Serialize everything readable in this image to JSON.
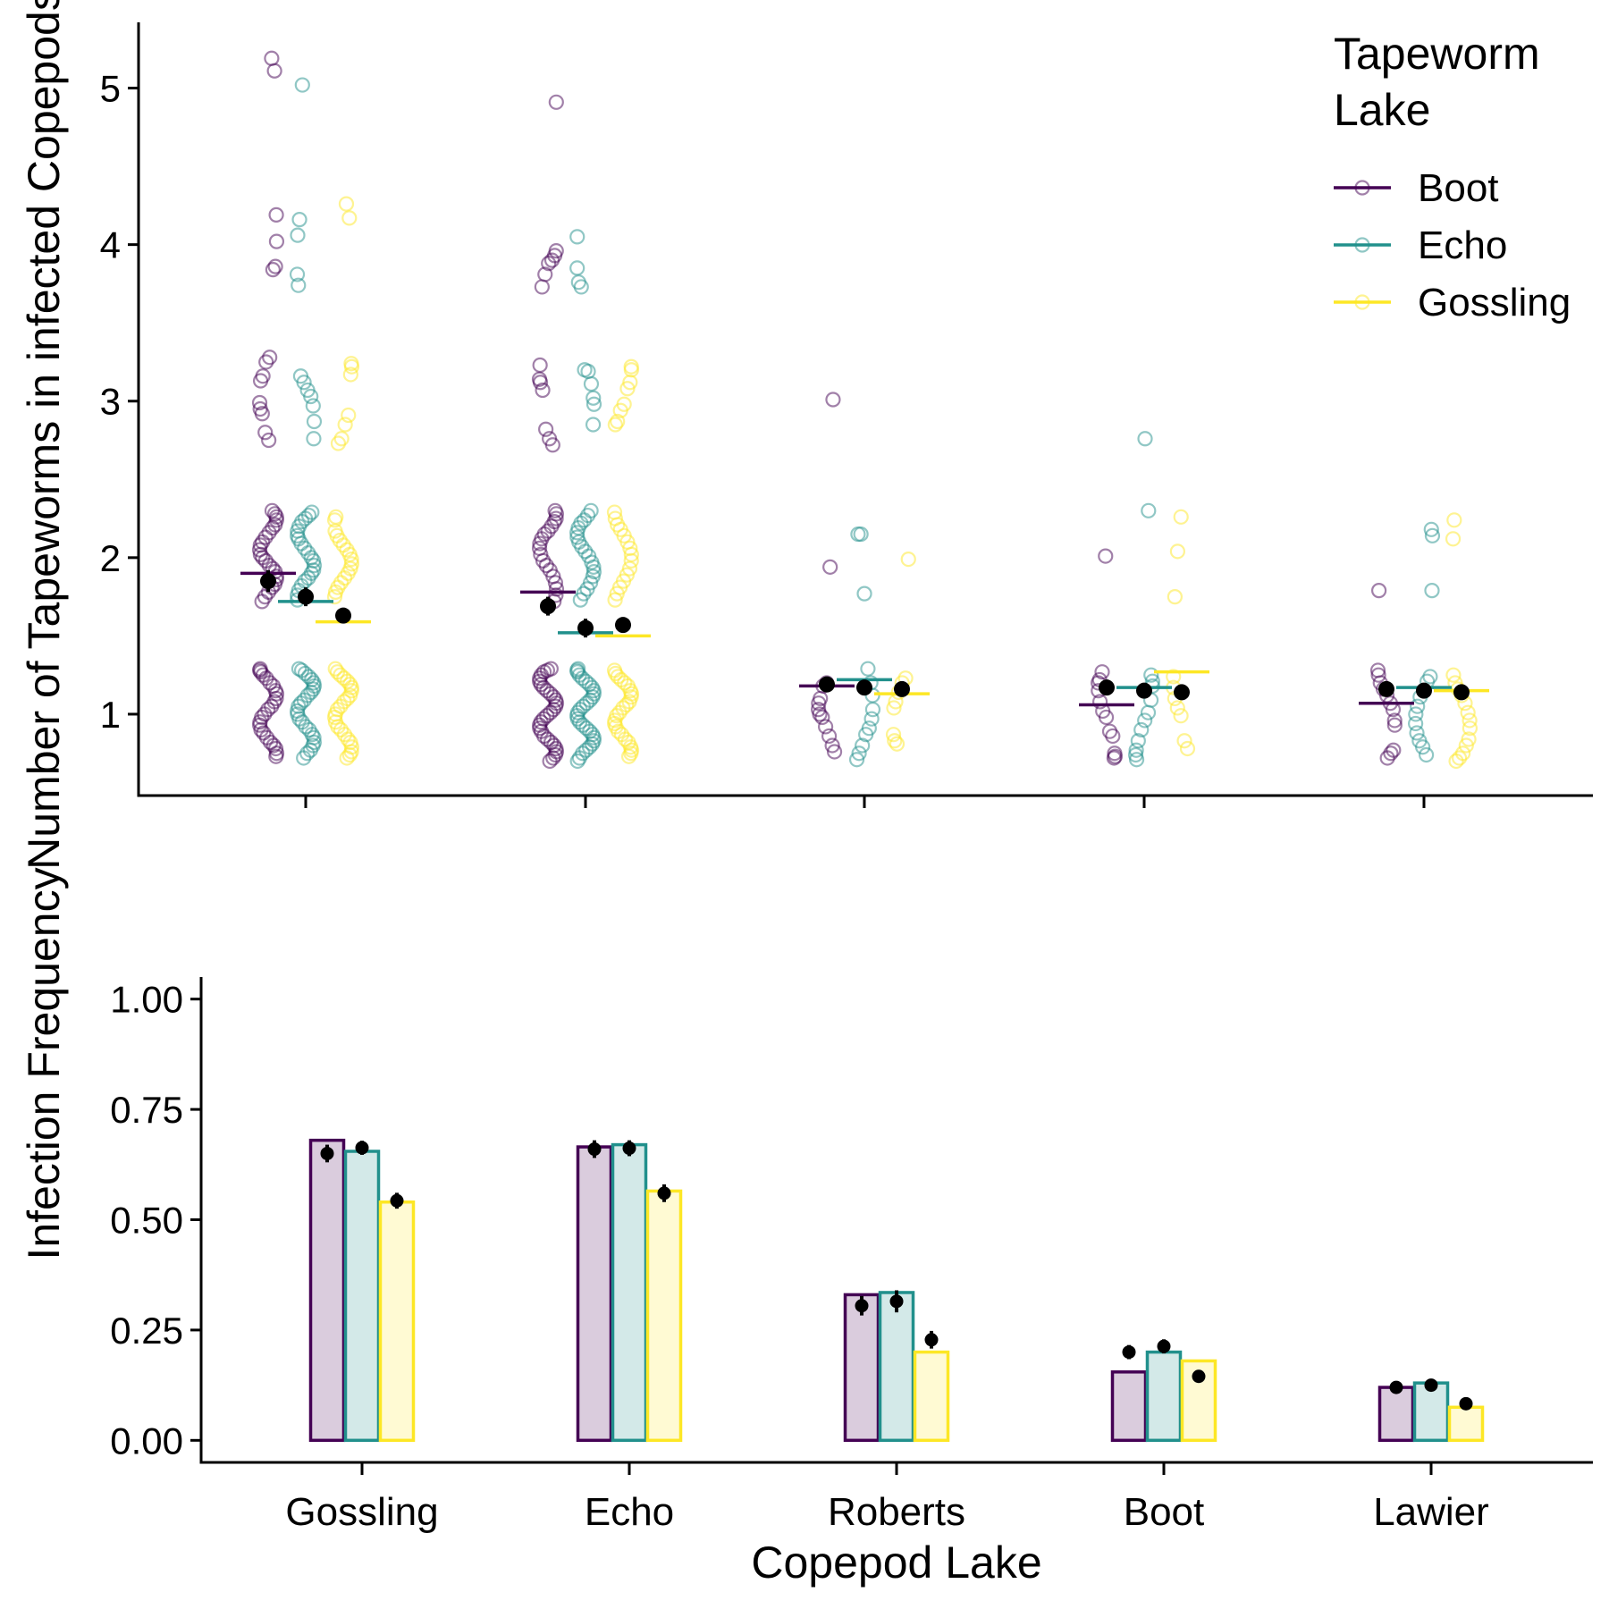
{
  "legend": {
    "title_line1": "Tapeworm",
    "title_line2": "Lake",
    "items": [
      "Boot",
      "Echo",
      "Gossling"
    ]
  },
  "colors": {
    "Boot": "#440154",
    "Echo": "#21908C",
    "Gossling": "#FDE725",
    "summary": "#000000",
    "axis": "#000000"
  },
  "chart_data": [
    {
      "type": "scatter",
      "panel": "top",
      "ylabel": "Number of Tapeworms in infected Copepods",
      "xlabel": "",
      "ylim": [
        0.48,
        5.42
      ],
      "yticks": [
        1,
        2,
        3,
        4,
        5
      ],
      "categories": [
        "Gossling",
        "Echo",
        "Roberts",
        "Boot",
        "Lawier"
      ],
      "series_order": [
        "Boot",
        "Echo",
        "Gossling"
      ],
      "observed_mean": {
        "Boot": [
          1.9,
          1.78,
          1.18,
          1.06,
          1.07
        ],
        "Echo": [
          1.72,
          1.52,
          1.22,
          1.17,
          1.17
        ],
        "Gossling": [
          1.59,
          1.5,
          1.13,
          1.27,
          1.15
        ]
      },
      "model_estimate": {
        "Boot": {
          "mean": [
            1.85,
            1.69,
            1.19,
            1.17,
            1.16
          ],
          "se": [
            0.07,
            0.06,
            0.03,
            0.03,
            0.03
          ]
        },
        "Echo": {
          "mean": [
            1.75,
            1.55,
            1.17,
            1.15,
            1.15
          ],
          "se": [
            0.06,
            0.06,
            0.03,
            0.03,
            0.03
          ]
        },
        "Gossling": {
          "mean": [
            1.63,
            1.57,
            1.16,
            1.14,
            1.14
          ],
          "se": [
            0.04,
            0.04,
            0.03,
            0.03,
            0.03
          ]
        }
      },
      "points": {
        "Boot": [
          [
            5.19,
            5.11,
            4.19,
            4.02,
            3.86,
            3.84,
            3.28,
            3.25,
            3.16,
            3.13,
            2.99,
            2.95,
            2.92,
            2.8,
            2.75,
            2.3,
            2.28,
            2.26,
            2.24,
            2.21,
            2.19,
            2.16,
            2.13,
            2.1,
            2.08,
            2.05,
            2.02,
            2.0,
            1.98,
            1.95,
            1.93,
            1.91,
            1.88,
            1.86,
            1.83,
            1.81,
            1.78,
            1.75,
            1.72,
            1.29,
            1.28,
            1.27,
            1.25,
            1.23,
            1.2,
            1.18,
            1.15,
            1.13,
            1.1,
            1.08,
            1.05,
            1.03,
            1.0,
            0.98,
            0.95,
            0.93,
            0.9,
            0.88,
            0.85,
            0.82,
            0.8,
            0.78,
            0.75,
            0.73
          ],
          [
            4.91,
            3.96,
            3.93,
            3.9,
            3.88,
            3.81,
            3.73,
            3.23,
            3.14,
            3.12,
            3.07,
            2.82,
            2.76,
            2.72,
            2.3,
            2.28,
            2.25,
            2.23,
            2.2,
            2.17,
            2.15,
            2.12,
            2.09,
            2.06,
            2.02,
            1.98,
            1.95,
            1.92,
            1.88,
            1.84,
            1.8,
            1.76,
            1.72,
            1.29,
            1.28,
            1.27,
            1.25,
            1.23,
            1.21,
            1.19,
            1.17,
            1.15,
            1.13,
            1.11,
            1.09,
            1.07,
            1.05,
            1.03,
            1.01,
            0.99,
            0.97,
            0.95,
            0.93,
            0.91,
            0.89,
            0.86,
            0.84,
            0.82,
            0.8,
            0.78,
            0.76,
            0.74,
            0.72,
            0.7
          ],
          [
            3.01,
            1.94,
            1.2,
            1.18,
            1.1,
            1.07,
            1.03,
            1.0,
            0.98,
            0.92,
            0.86,
            0.8,
            0.76
          ],
          [
            2.01,
            1.27,
            1.22,
            1.2,
            1.15,
            1.08,
            1.02,
            0.98,
            0.89,
            0.86,
            0.75,
            0.73,
            0.72
          ],
          [
            1.79,
            1.28,
            1.25,
            1.2,
            1.16,
            1.12,
            1.07,
            1.03,
            0.96,
            0.93,
            0.77,
            0.75,
            0.72
          ]
        ],
        "Echo": [
          [
            5.02,
            4.16,
            4.06,
            3.81,
            3.74,
            3.16,
            3.12,
            3.07,
            3.03,
            2.97,
            2.87,
            2.76,
            2.29,
            2.27,
            2.25,
            2.23,
            2.2,
            2.17,
            2.14,
            2.12,
            2.09,
            2.06,
            2.03,
            2.0,
            1.98,
            1.95,
            1.92,
            1.9,
            1.87,
            1.85,
            1.82,
            1.79,
            1.76,
            1.73,
            1.29,
            1.28,
            1.26,
            1.24,
            1.22,
            1.2,
            1.18,
            1.16,
            1.14,
            1.12,
            1.09,
            1.07,
            1.05,
            1.02,
            1.0,
            0.97,
            0.95,
            0.92,
            0.9,
            0.87,
            0.85,
            0.82,
            0.8,
            0.77,
            0.75,
            0.72
          ],
          [
            4.05,
            3.85,
            3.76,
            3.73,
            3.2,
            3.19,
            3.11,
            3.02,
            2.98,
            2.85,
            2.3,
            2.27,
            2.24,
            2.22,
            2.19,
            2.16,
            2.13,
            2.1,
            2.07,
            2.04,
            2.01,
            1.97,
            1.94,
            1.91,
            1.88,
            1.84,
            1.8,
            1.77,
            1.73,
            1.29,
            1.28,
            1.27,
            1.25,
            1.23,
            1.21,
            1.19,
            1.17,
            1.15,
            1.13,
            1.11,
            1.09,
            1.07,
            1.05,
            1.03,
            1.01,
            0.99,
            0.97,
            0.95,
            0.93,
            0.91,
            0.89,
            0.87,
            0.85,
            0.83,
            0.81,
            0.79,
            0.77,
            0.75,
            0.72,
            0.7
          ],
          [
            2.15,
            2.15,
            1.77,
            1.29,
            1.2,
            1.12,
            1.03,
            0.97,
            0.91,
            0.87,
            0.8,
            0.75,
            0.71
          ],
          [
            2.76,
            2.3,
            1.25,
            1.21,
            1.18,
            1.09,
            1.01,
            0.96,
            0.9,
            0.83,
            0.77,
            0.74,
            0.71
          ],
          [
            2.18,
            2.14,
            1.79,
            1.24,
            1.21,
            1.15,
            1.11,
            1.05,
            1.0,
            0.94,
            0.88,
            0.83,
            0.79,
            0.74
          ]
        ],
        "Gossling": [
          [
            4.26,
            4.17,
            3.24,
            3.22,
            3.17,
            2.91,
            2.85,
            2.76,
            2.73,
            2.26,
            2.24,
            2.17,
            2.14,
            2.11,
            2.08,
            2.05,
            2.02,
            1.99,
            1.96,
            1.93,
            1.9,
            1.87,
            1.84,
            1.81,
            1.78,
            1.75,
            1.29,
            1.27,
            1.25,
            1.23,
            1.21,
            1.19,
            1.17,
            1.15,
            1.12,
            1.1,
            1.08,
            1.05,
            1.03,
            1.0,
            0.98,
            0.95,
            0.92,
            0.9,
            0.87,
            0.84,
            0.82,
            0.79,
            0.76,
            0.74,
            0.72
          ],
          [
            3.22,
            3.2,
            3.12,
            3.08,
            2.98,
            2.94,
            2.87,
            2.85,
            2.29,
            2.25,
            2.21,
            2.18,
            2.14,
            2.1,
            2.06,
            2.02,
            1.98,
            1.93,
            1.89,
            1.85,
            1.81,
            1.77,
            1.73,
            1.28,
            1.26,
            1.24,
            1.22,
            1.2,
            1.18,
            1.15,
            1.13,
            1.11,
            1.08,
            1.06,
            1.04,
            1.01,
            0.99,
            0.96,
            0.94,
            0.92,
            0.89,
            0.87,
            0.84,
            0.82,
            0.79,
            0.77,
            0.75,
            0.73
          ],
          [
            1.99,
            1.23,
            1.2,
            1.14,
            1.08,
            1.04,
            0.87,
            0.83,
            0.81
          ],
          [
            2.26,
            2.04,
            1.75,
            1.24,
            1.17,
            1.1,
            1.04,
            0.99,
            0.83,
            0.78
          ],
          [
            2.24,
            2.12,
            1.25,
            1.2,
            1.16,
            1.12,
            1.07,
            1.01,
            0.96,
            0.91,
            0.84,
            0.8,
            0.75,
            0.72,
            0.7
          ]
        ]
      }
    },
    {
      "type": "bar",
      "panel": "bottom",
      "ylabel": "Infection Frequency",
      "xlabel": "Copepod Lake",
      "ylim": [
        -0.05,
        1.05
      ],
      "yticks": [
        0,
        0.25,
        0.5,
        0.75,
        1
      ],
      "ytick_labels": [
        "0.00",
        "0.25",
        "0.50",
        "0.75",
        "1.00"
      ],
      "categories": [
        "Gossling",
        "Echo",
        "Roberts",
        "Boot",
        "Lawier"
      ],
      "series": [
        {
          "name": "Boot",
          "values": [
            0.68,
            0.665,
            0.33,
            0.155,
            0.12
          ],
          "estimate": [
            0.65,
            0.66,
            0.305,
            0.2,
            0.12
          ],
          "se": [
            0.02,
            0.02,
            0.022,
            0.016,
            0.01
          ]
        },
        {
          "name": "Echo",
          "values": [
            0.655,
            0.67,
            0.335,
            0.2,
            0.13
          ],
          "estimate": [
            0.663,
            0.662,
            0.315,
            0.213,
            0.125
          ],
          "se": [
            0.016,
            0.018,
            0.025,
            0.016,
            0.008
          ]
        },
        {
          "name": "Gossling",
          "values": [
            0.54,
            0.565,
            0.2,
            0.18,
            0.075
          ],
          "estimate": [
            0.543,
            0.56,
            0.228,
            0.145,
            0.083
          ],
          "se": [
            0.018,
            0.02,
            0.02,
            0.01,
            0.008
          ]
        }
      ]
    }
  ]
}
